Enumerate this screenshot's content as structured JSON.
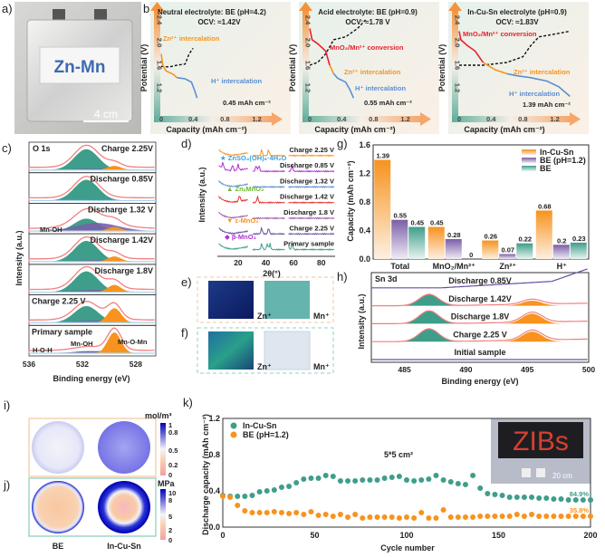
{
  "panel_labels": {
    "a": "a)",
    "b": "b)",
    "c": "c)",
    "d": "d)",
    "e": "e)",
    "f": "f)",
    "g": "g)",
    "h": "h)",
    "i": "i)",
    "j": "j)",
    "k": "k)"
  },
  "photo": {
    "cell_label": "Zn-Mn",
    "scale_bar": "4 cm"
  },
  "colors": {
    "orange": "#f7931e",
    "purple": "#7a5ea8",
    "teal": "#3f9e8a",
    "red": "#e8202a",
    "blue": "#5b8fd0",
    "pink": "#f08080"
  },
  "chart_data": [
    {
      "panel": "b",
      "type": "line",
      "xlabel": "Capacity (mAh cm⁻²)",
      "ylabel": "Potential (V)",
      "xticks": [
        "0",
        "0.4",
        "0.8",
        "1.2"
      ],
      "yticks": [
        "1.2",
        "1.6",
        "2.0",
        "2.4"
      ],
      "xlim": [
        0,
        1.3
      ],
      "ylim": [
        1.0,
        2.5
      ],
      "subplots": [
        {
          "title": "Neutral electrolyte: BE (pH=4.2)",
          "ocv": "OCV: ≈1.42V",
          "capacity": "0.45 mAh cm⁻²",
          "labels": {
            "zn": "Zn²⁺ intercalation",
            "h": "H⁺ intercalation"
          },
          "discharge": [
            [
              0,
              1.8
            ],
            [
              0.02,
              1.6
            ],
            [
              0.06,
              1.5
            ],
            [
              0.15,
              1.44
            ],
            [
              0.2,
              1.38
            ],
            [
              0.3,
              1.36
            ],
            [
              0.38,
              1.3
            ],
            [
              0.42,
              1.15
            ],
            [
              0.45,
              1.02
            ]
          ],
          "charge": [
            [
              0,
              1.58
            ],
            [
              0.1,
              1.57
            ],
            [
              0.2,
              1.6
            ],
            [
              0.3,
              1.62
            ],
            [
              0.35,
              1.8
            ],
            [
              0.4,
              1.9
            ]
          ]
        },
        {
          "title": "Acid electrolyte: BE (pH=0.9)",
          "ocv": "OCV: ≈1.78 V",
          "capacity": "0.55 mAh cm⁻²",
          "labels": {
            "mn": "MnO₂/Mn²⁺ conversion",
            "zn": "Zn²⁺ intercalation",
            "h": "H⁺ intercalation"
          },
          "discharge": [
            [
              0,
              2.25
            ],
            [
              0.03,
              2.05
            ],
            [
              0.1,
              1.98
            ],
            [
              0.2,
              1.85
            ],
            [
              0.25,
              1.6
            ],
            [
              0.3,
              1.45
            ],
            [
              0.35,
              1.37
            ],
            [
              0.45,
              1.3
            ],
            [
              0.5,
              1.18
            ],
            [
              0.55,
              1.02
            ]
          ],
          "charge": [
            [
              0,
              1.6
            ],
            [
              0.1,
              1.65
            ],
            [
              0.2,
              1.8
            ],
            [
              0.3,
              2.05
            ],
            [
              0.45,
              2.1
            ],
            [
              0.6,
              2.25
            ],
            [
              0.7,
              2.4
            ]
          ]
        },
        {
          "title": "In-Cu-Sn electrolyte (pH=0.9)",
          "ocv": "OCV: ≈1.83V",
          "capacity": "1.39 mAh cm⁻²",
          "labels": {
            "mn": "MnO₂/Mn²⁺ conversion",
            "zn": "Zn²⁺ intercalation",
            "h": "H⁺ intercalation"
          },
          "discharge": [
            [
              0,
              2.2
            ],
            [
              0.02,
              2.05
            ],
            [
              0.1,
              1.95
            ],
            [
              0.2,
              1.85
            ],
            [
              0.3,
              1.65
            ],
            [
              0.45,
              1.52
            ],
            [
              0.6,
              1.45
            ],
            [
              0.7,
              1.42
            ],
            [
              0.9,
              1.38
            ],
            [
              1.1,
              1.32
            ],
            [
              1.25,
              1.22
            ],
            [
              1.39,
              1.05
            ]
          ],
          "charge": [
            [
              0,
              1.6
            ],
            [
              0.3,
              1.6
            ],
            [
              0.6,
              1.65
            ],
            [
              0.8,
              1.75
            ],
            [
              0.9,
              1.95
            ],
            [
              1.0,
              2.1
            ],
            [
              1.2,
              2.15
            ],
            [
              1.39,
              2.2
            ]
          ]
        }
      ]
    },
    {
      "panel": "c",
      "type": "area",
      "title": "O 1s",
      "xlabel": "Binding energy (eV)",
      "ylabel": "Intensity (a.u.)",
      "xticks": [
        536,
        532,
        528
      ],
      "xlim": [
        536,
        526.5
      ],
      "spectra": [
        {
          "label": "Charge 2.25V",
          "mnoh": 0.1,
          "mnomn": 0.2,
          "hoh": 1.0
        },
        {
          "label": "Discharge 0.85V",
          "mnoh": 0.05,
          "mnomn": 0.0,
          "hoh": 1.0
        },
        {
          "label": "Discharge 1.32 V",
          "mnoh": 0.55,
          "mnomn": 0.2,
          "hoh": 0.6
        },
        {
          "label": "Discharge 1.42V",
          "mnoh": 0.1,
          "mnomn": 0.25,
          "hoh": 1.0
        },
        {
          "label": "Discharge 1.8V",
          "mnoh": 0.15,
          "mnomn": 0.35,
          "hoh": 1.0
        },
        {
          "label": "Charge 2.25 V",
          "mnoh": 0.15,
          "mnomn": 0.7,
          "hoh": 0.8
        },
        {
          "label": "Primary sample",
          "mnoh": 0.15,
          "mnomn": 1.0,
          "hoh": 0.1
        }
      ],
      "annotations": {
        "mnoh_1": "Mn-OH",
        "hoh": "H-O-H",
        "mnoh_2": "Mn-OH",
        "mnomn": "Mn-O-Mn"
      }
    },
    {
      "panel": "d",
      "type": "line",
      "xlabel": "2θ(°)",
      "ylabel": "Intensity (a.u.)",
      "xticks": [
        20,
        40,
        60,
        80
      ],
      "xlim": [
        5,
        90
      ],
      "traces": [
        {
          "label": "Charge 2.25 V",
          "color": "#f7931e"
        },
        {
          "label": "Discharge 0.85 V",
          "color": "#b030d0"
        },
        {
          "label": "Discharge 1.32 V",
          "color": "#5b8fd0"
        },
        {
          "label": "Discharge 1.42 V",
          "color": "#e8302a"
        },
        {
          "label": "Discharge 1.8 V",
          "color": "#9a5aa8"
        },
        {
          "label": "Charge 2.25 V",
          "color": "#6a4ea0"
        },
        {
          "label": "Primary sample",
          "color": "#3f9e8a"
        }
      ],
      "legend": {
        "znso4": "★ ZnSO₄(OH)₆·4H₂O",
        "znmn": "▲ ZnₓMnO₂",
        "eps": "▼ ε-MnO₂",
        "beta": "◆ β-MnO₂"
      }
    },
    {
      "panel": "g",
      "type": "bar",
      "ylabel": "Capacity (mAh cm⁻²)",
      "ylim": [
        0,
        1.6
      ],
      "yticks": [
        "0.0",
        "0.4",
        "0.8",
        "1.2",
        "1.6"
      ],
      "categories": [
        "Total",
        "MnO₂/Mn²⁺",
        "Zn²⁺",
        "H⁺"
      ],
      "legend_position": "top-right",
      "series": [
        {
          "name": "In-Cu-Sn",
          "color": "#f7931e",
          "values": [
            1.39,
            0.45,
            0.26,
            0.68
          ],
          "labels": [
            "1.39",
            "0.45",
            "0.26",
            "0.68"
          ]
        },
        {
          "name": "BE (pH=1.2)",
          "color": "#7a5ea8",
          "values": [
            0.55,
            0.28,
            0.07,
            0.2
          ],
          "labels": [
            "0.55",
            "0.28",
            "0.07",
            "0.2"
          ]
        },
        {
          "name": "BE",
          "color": "#3f9e8a",
          "values": [
            0.45,
            0,
            0.22,
            0.23
          ],
          "labels": [
            "0.45",
            "0",
            "0.22",
            "0.23"
          ]
        }
      ]
    },
    {
      "panel": "h",
      "type": "area",
      "title": "Sn 3d",
      "xlabel": "Binding energy (eV)",
      "ylabel": "Intensity (a.u.)",
      "xticks": [
        485,
        490,
        495,
        500
      ],
      "xlim": [
        482.3,
        500
      ],
      "spectra": [
        {
          "label": "Discharge 0.85V",
          "peak1": 0,
          "peak2": 0
        },
        {
          "label": "Discharge 1.42V",
          "peak1": 0.8,
          "peak2": 0.35
        },
        {
          "label": "Discharge 1.8V",
          "peak1": 0.9,
          "peak2": 0.7
        },
        {
          "label": "Charge 2.25 V",
          "peak1": 0.9,
          "peak2": 0.7
        },
        {
          "label": "Initial sample",
          "peak1": 0,
          "peak2": 0
        }
      ]
    },
    {
      "panel": "k",
      "type": "scatter",
      "xlabel": "Cycle number",
      "ylabel": "Discharge capacity (mAh cm⁻²)",
      "xlim": [
        0,
        200
      ],
      "ylim": [
        0,
        1.2
      ],
      "xticks": [
        "0",
        "50",
        "100",
        "150",
        "200"
      ],
      "yticks": [
        "0.0",
        "0.4",
        "0.8",
        "1.2"
      ],
      "legend_position": "top-left",
      "annotation": "5*5 cm²",
      "x": [
        0,
        4,
        8,
        12,
        16,
        20,
        24,
        28,
        32,
        36,
        40,
        44,
        48,
        52,
        56,
        60,
        64,
        68,
        72,
        76,
        80,
        84,
        88,
        92,
        96,
        100,
        104,
        108,
        112,
        116,
        120,
        124,
        128,
        132,
        136,
        140,
        144,
        148,
        152,
        156,
        160,
        164,
        168,
        172,
        176,
        180,
        184,
        188,
        192,
        196,
        200
      ],
      "series": [
        {
          "name": "In-Cu-Sn",
          "color": "#3f9e8a",
          "retention": "84.9%",
          "values": [
            0.35,
            0.34,
            0.34,
            0.34,
            0.35,
            0.39,
            0.4,
            0.41,
            0.44,
            0.45,
            0.49,
            0.53,
            0.54,
            0.54,
            0.57,
            0.56,
            0.51,
            0.51,
            0.51,
            0.52,
            0.52,
            0.52,
            0.54,
            0.55,
            0.56,
            0.52,
            0.51,
            0.52,
            0.53,
            0.57,
            0.52,
            0.5,
            0.48,
            0.47,
            0.57,
            0.43,
            0.37,
            0.36,
            0.35,
            0.33,
            0.33,
            0.33,
            0.33,
            0.32,
            0.32,
            0.31,
            0.31,
            0.3,
            0.3,
            0.3,
            0.3
          ]
        },
        {
          "name": "BE (pH=1.2)",
          "color": "#f7931e",
          "retention": "35.8%",
          "values": [
            0.34,
            0.33,
            0.24,
            0.18,
            0.16,
            0.16,
            0.16,
            0.17,
            0.16,
            0.15,
            0.16,
            0.14,
            0.17,
            0.13,
            0.14,
            0.12,
            0.14,
            0.11,
            0.14,
            0.1,
            0.11,
            0.11,
            0.11,
            0.11,
            0.1,
            0.11,
            0.1,
            0.16,
            0.1,
            0.1,
            0.19,
            0.11,
            0.11,
            0.11,
            0.11,
            0.12,
            0.12,
            0.12,
            0.12,
            0.12,
            0.14,
            0.12,
            0.14,
            0.12,
            0.12,
            0.12,
            0.12,
            0.12,
            0.12,
            0.12,
            0.12
          ]
        }
      ],
      "inset": {
        "sign_text": "ZIBs",
        "scale": "20 cm"
      }
    }
  ],
  "tomography": {
    "zn": "Zn⁺",
    "mn": "Mn⁺"
  },
  "simulation": {
    "i_unit": "mol/m³",
    "i_ticks": [
      "1",
      "0.8",
      "0.5",
      "0.2",
      "0"
    ],
    "j_unit": "MPa",
    "j_ticks": [
      "10",
      "8",
      "5",
      "2",
      "0"
    ],
    "labels": {
      "be": "BE",
      "incusn": "In-Cu-Sn"
    }
  }
}
